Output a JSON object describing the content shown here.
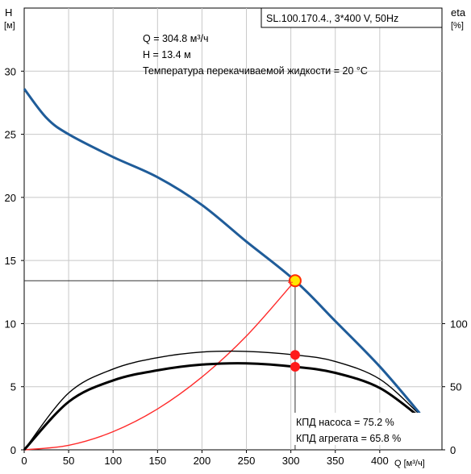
{
  "chart_data": {
    "type": "line",
    "title": "SL.100.170.4., 3*400 V, 50Hz",
    "annotations": [
      "Q = 304.8 м³/ч",
      "H = 13.4 м",
      "Температура перекачиваемой жидкости = 20 °C"
    ],
    "efficiency_labels": [
      "КПД насоса = 75.2 %",
      "КПД агрегата = 65.8 %"
    ],
    "x_axis": {
      "label": "Q [м³/ч]",
      "ticks": [
        "0",
        "50",
        "100",
        "150",
        "200",
        "250",
        "300",
        "350",
        "400"
      ],
      "range": [
        0,
        470
      ]
    },
    "y_left": {
      "label_top": "H",
      "label_unit": "[м]",
      "ticks": [
        "0",
        "5",
        "10",
        "15",
        "20",
        "25",
        "30"
      ],
      "range": [
        0,
        35
      ]
    },
    "y_right": {
      "label_top": "eta",
      "label_unit": "[%]",
      "ticks": [
        "0",
        "50",
        "100"
      ],
      "range": [
        0,
        350
      ]
    },
    "grid": true,
    "series": [
      {
        "name": "H",
        "color": "#1f5c99",
        "x": [
          0,
          25,
          50,
          100,
          150,
          200,
          250,
          304.8,
          350,
          400,
          445
        ],
        "y": [
          28.6,
          26.3,
          25.0,
          23.2,
          21.6,
          19.4,
          16.5,
          13.4,
          10.2,
          6.6,
          2.9
        ]
      },
      {
        "name": "eta_pump",
        "color": "#000000",
        "x": [
          0,
          50,
          100,
          150,
          200,
          250,
          304.8,
          350,
          400,
          445
        ],
        "y": [
          0,
          45,
          64,
          73,
          77.5,
          78,
          75.2,
          70,
          56,
          28
        ]
      },
      {
        "name": "eta_unit",
        "color": "#000000",
        "x": [
          0,
          50,
          100,
          150,
          200,
          250,
          304.8,
          350,
          400,
          445
        ],
        "y": [
          0,
          38,
          55,
          63,
          67.5,
          68.5,
          65.8,
          61,
          49,
          26
        ]
      },
      {
        "name": "system_curve",
        "color": "#ff2a2a",
        "x": [
          0,
          50,
          100,
          150,
          200,
          250,
          304.8
        ],
        "y": [
          0,
          0.36,
          1.44,
          3.24,
          5.77,
          9.01,
          13.4
        ]
      }
    ],
    "duty_point": {
      "x": 304.8,
      "y": 13.4
    },
    "efficiency_points": [
      {
        "x": 304.8,
        "y": 75.2
      },
      {
        "x": 304.8,
        "y": 65.8
      }
    ],
    "colors": {
      "h_curve": "#1f5c99",
      "system_curve": "#ff2a2a",
      "eff_marker": "#ff1a1a",
      "duty_fill": "#ffe600",
      "duty_stroke": "#ff2a00",
      "grid": "#c8c8c8"
    }
  }
}
